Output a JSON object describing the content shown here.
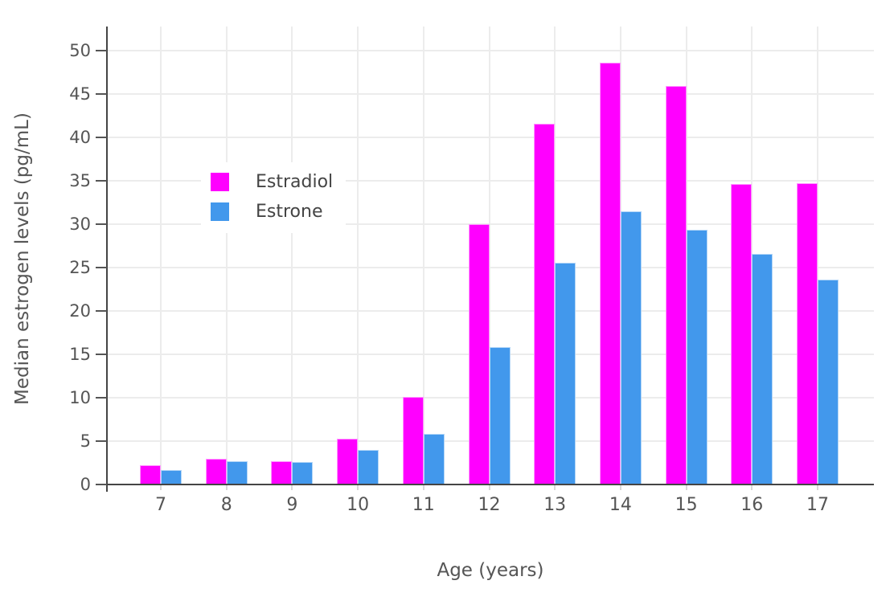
{
  "chart_data": {
    "type": "bar",
    "title": "",
    "categories": [
      "7",
      "8",
      "9",
      "10",
      "11",
      "12",
      "13",
      "14",
      "15",
      "16",
      "17"
    ],
    "series": [
      {
        "name": "Estradiol",
        "color": "#ff00ff",
        "values": [
          2.2,
          3.0,
          2.7,
          5.3,
          10.1,
          30.0,
          41.6,
          48.6,
          45.9,
          34.6,
          34.7
        ]
      },
      {
        "name": "Estrone",
        "color": "#4298ec",
        "values": [
          1.7,
          2.7,
          2.6,
          4.0,
          5.8,
          15.8,
          25.6,
          31.5,
          29.4,
          26.6,
          23.6
        ]
      }
    ],
    "xlabel": "Age (years)",
    "ylabel": "Median estrogen levels (pg/mL)",
    "ylim": [
      0,
      52.8
    ],
    "y_ticks": [
      0,
      5,
      10,
      15,
      20,
      25,
      30,
      35,
      40,
      45,
      50
    ],
    "grid": true,
    "legend_position": "inside-top-left"
  },
  "colors": {
    "background": "#ffffff",
    "grid": "#ececec",
    "axis": "#444444",
    "tick_label": "#555555",
    "axis_title": "#555555",
    "legend_text": "#444444",
    "x_tick_mark": "#d9d9d9",
    "bar_edge": "rgba(255,255,255,0.6)"
  }
}
